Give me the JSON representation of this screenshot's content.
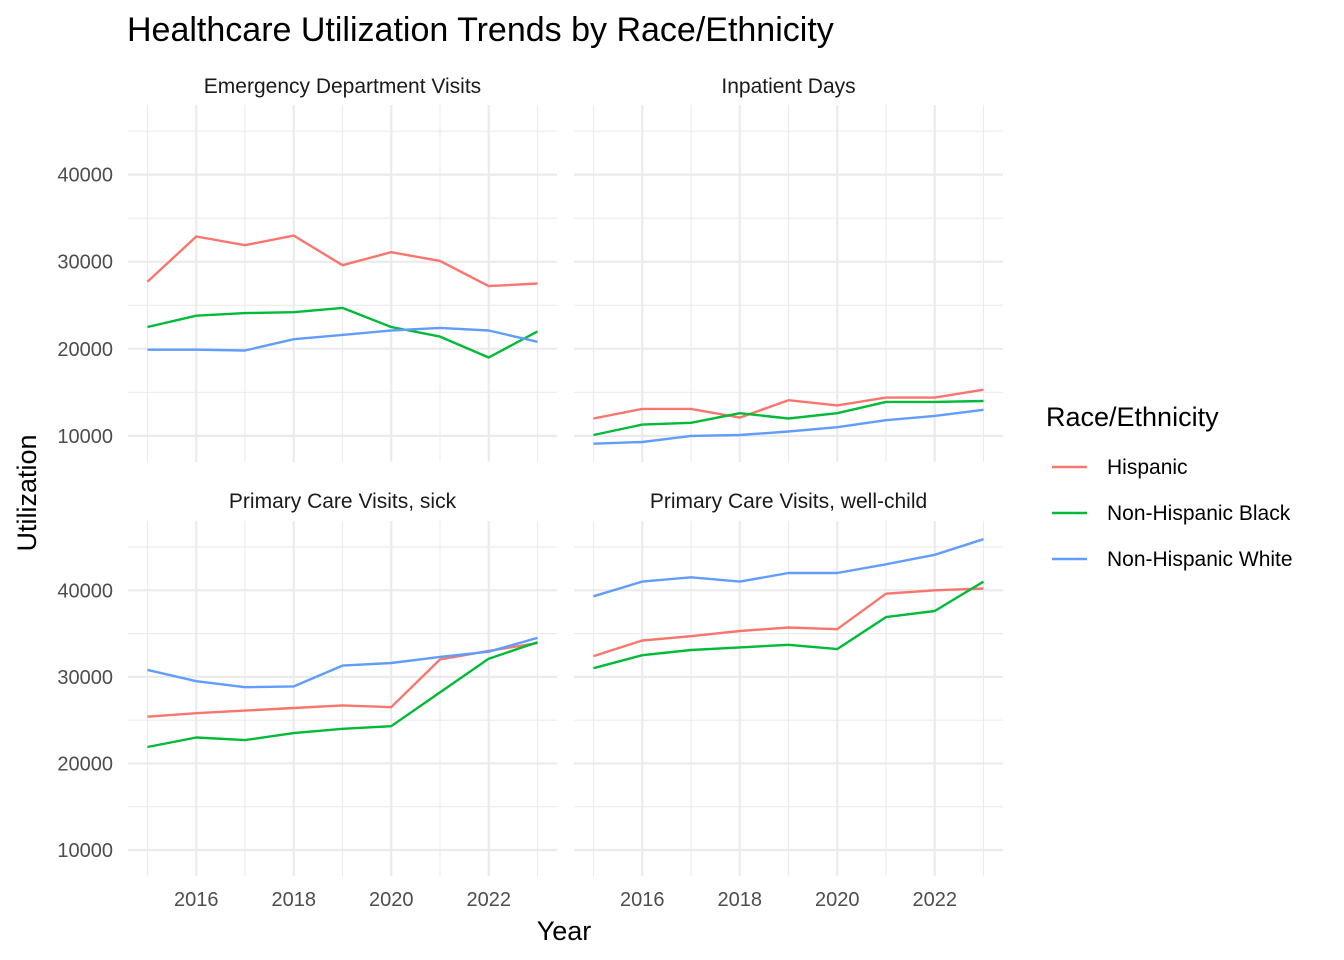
{
  "chart_data": {
    "type": "line",
    "title": "Healthcare Utilization Trends by Race/Ethnicity",
    "xlabel": "Year",
    "ylabel": "Utilization",
    "x": [
      2015,
      2016,
      2017,
      2018,
      2019,
      2020,
      2021,
      2022,
      2023
    ],
    "xlim": [
      2014.6,
      2023.4
    ],
    "ylim": [
      7000,
      48000
    ],
    "x_ticks": [
      "2016",
      "2018",
      "2020",
      "2022"
    ],
    "x_tick_values": [
      2016,
      2018,
      2020,
      2022
    ],
    "y_ticks": [
      "10000",
      "20000",
      "30000",
      "40000"
    ],
    "y_tick_values": [
      10000,
      20000,
      30000,
      40000
    ],
    "grid": true,
    "legend": {
      "title": "Race/Ethnicity",
      "position": "right",
      "entries": [
        "Hispanic",
        "Non-Hispanic Black",
        "Non-Hispanic White"
      ]
    },
    "colors": {
      "Hispanic": "#F8766D",
      "Non-Hispanic Black": "#00BA38",
      "Non-Hispanic White": "#619CFF"
    },
    "facets": [
      {
        "label": "Emergency Department Visits",
        "series": [
          {
            "name": "Hispanic",
            "values": [
              27700,
              32900,
              31900,
              33000,
              29600,
              31100,
              30100,
              27200,
              27500
            ]
          },
          {
            "name": "Non-Hispanic Black",
            "values": [
              22500,
              23800,
              24100,
              24200,
              24700,
              22500,
              21400,
              19000,
              22000
            ]
          },
          {
            "name": "Non-Hispanic White",
            "values": [
              19900,
              19900,
              19800,
              21100,
              21600,
              22100,
              22400,
              22100,
              20800
            ]
          }
        ]
      },
      {
        "label": "Inpatient Days",
        "series": [
          {
            "name": "Hispanic",
            "values": [
              12000,
              13100,
              13100,
              12100,
              14100,
              13500,
              14400,
              14400,
              15300
            ]
          },
          {
            "name": "Non-Hispanic Black",
            "values": [
              10100,
              11300,
              11500,
              12600,
              12000,
              12600,
              13900,
              13900,
              14000
            ]
          },
          {
            "name": "Non-Hispanic White",
            "values": [
              9100,
              9300,
              10000,
              10100,
              10500,
              11000,
              11800,
              12300,
              13000
            ]
          }
        ]
      },
      {
        "label": "Primary Care Visits, sick",
        "series": [
          {
            "name": "Hispanic",
            "values": [
              25400,
              25800,
              26100,
              26400,
              26700,
              26500,
              32000,
              33000,
              33900
            ]
          },
          {
            "name": "Non-Hispanic Black",
            "values": [
              21900,
              23000,
              22700,
              23500,
              24000,
              24300,
              28200,
              32100,
              34000
            ]
          },
          {
            "name": "Non-Hispanic White",
            "values": [
              30800,
              29500,
              28800,
              28900,
              31300,
              31600,
              32300,
              32900,
              34500
            ]
          }
        ]
      },
      {
        "label": "Primary Care Visits, well-child",
        "series": [
          {
            "name": "Hispanic",
            "values": [
              32400,
              34200,
              34700,
              35300,
              35700,
              35500,
              39600,
              40000,
              40200
            ]
          },
          {
            "name": "Non-Hispanic Black",
            "values": [
              31000,
              32500,
              33100,
              33400,
              33700,
              33200,
              36900,
              37600,
              41000
            ]
          },
          {
            "name": "Non-Hispanic White",
            "values": [
              39300,
              41000,
              41500,
              41000,
              42000,
              42000,
              43000,
              44100,
              45900
            ]
          }
        ]
      }
    ]
  }
}
